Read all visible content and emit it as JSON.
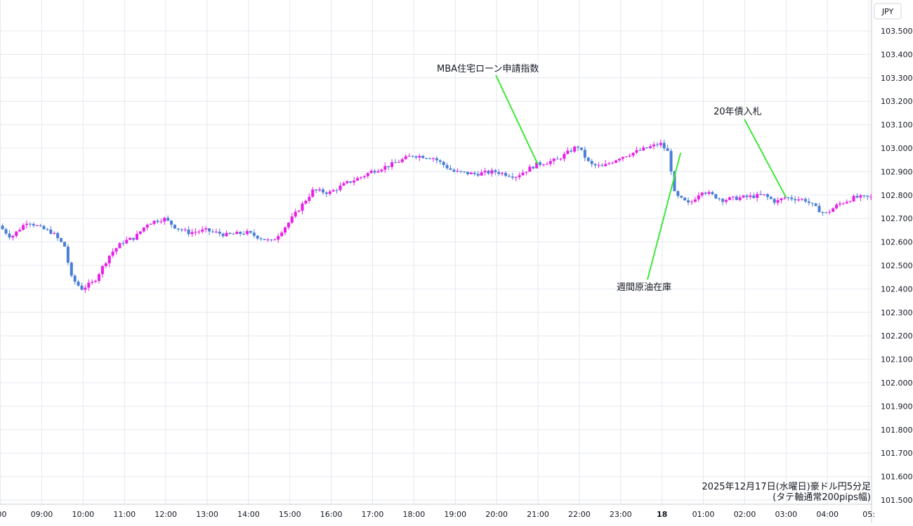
{
  "chart_data": {
    "type": "candlestick",
    "currency_label": "JPY",
    "ylim": [
      101.5,
      103.5
    ],
    "y_ticks": [
      "103.500",
      "103.400",
      "103.300",
      "103.200",
      "103.100",
      "103.000",
      "102.900",
      "102.800",
      "102.700",
      "102.600",
      "102.500",
      "102.400",
      "102.300",
      "102.200",
      "102.100",
      "102.000",
      "101.900",
      "101.800",
      "101.700",
      "101.600",
      "101.500"
    ],
    "x_ticks": [
      ":00",
      "09:00",
      "10:00",
      "11:00",
      "12:00",
      "13:00",
      "14:00",
      "15:00",
      "16:00",
      "17:00",
      "18:00",
      "19:00",
      "20:00",
      "21:00",
      "22:00",
      "23:00",
      "18",
      "01:00",
      "02:00",
      "03:00",
      "04:00",
      "05:"
    ],
    "x_tick_hours": [
      8,
      9,
      10,
      11,
      12,
      13,
      14,
      15,
      16,
      17,
      18,
      19,
      20,
      21,
      22,
      23,
      24,
      25,
      26,
      27,
      28,
      29
    ],
    "x_range_hours": [
      7.99,
      29.05
    ],
    "grid": true,
    "colors": {
      "up": "#e91ee8",
      "down": "#4a7fd6",
      "annotation_line": "#3ee83a",
      "grid": "#e4e8ef"
    },
    "price_path": [
      [
        8.0,
        102.67
      ],
      [
        8.3,
        102.62
      ],
      [
        8.7,
        102.69
      ],
      [
        9.0,
        102.66
      ],
      [
        9.3,
        102.64
      ],
      [
        9.6,
        102.58
      ],
      [
        9.75,
        102.45
      ],
      [
        10.0,
        102.4
      ],
      [
        10.3,
        102.43
      ],
      [
        10.7,
        102.55
      ],
      [
        11.0,
        102.6
      ],
      [
        11.3,
        102.62
      ],
      [
        11.6,
        102.68
      ],
      [
        12.0,
        102.7
      ],
      [
        12.3,
        102.66
      ],
      [
        12.6,
        102.64
      ],
      [
        13.0,
        102.65
      ],
      [
        13.5,
        102.63
      ],
      [
        14.0,
        102.64
      ],
      [
        14.3,
        102.62
      ],
      [
        14.6,
        102.6
      ],
      [
        15.0,
        102.68
      ],
      [
        15.3,
        102.75
      ],
      [
        15.6,
        102.82
      ],
      [
        16.0,
        102.81
      ],
      [
        16.4,
        102.85
      ],
      [
        16.8,
        102.88
      ],
      [
        17.0,
        102.9
      ],
      [
        17.5,
        102.93
      ],
      [
        18.0,
        102.97
      ],
      [
        18.5,
        102.96
      ],
      [
        19.0,
        102.9
      ],
      [
        19.5,
        102.89
      ],
      [
        20.0,
        102.9
      ],
      [
        20.5,
        102.88
      ],
      [
        21.0,
        102.93
      ],
      [
        21.5,
        102.95
      ],
      [
        22.0,
        103.01
      ],
      [
        22.3,
        102.93
      ],
      [
        22.6,
        102.92
      ],
      [
        23.0,
        102.96
      ],
      [
        23.5,
        102.99
      ],
      [
        24.0,
        103.02
      ],
      [
        24.2,
        102.98
      ],
      [
        24.35,
        102.8
      ],
      [
        24.7,
        102.76
      ],
      [
        25.0,
        102.82
      ],
      [
        25.5,
        102.78
      ],
      [
        26.0,
        102.79
      ],
      [
        26.5,
        102.8
      ],
      [
        26.8,
        102.77
      ],
      [
        27.0,
        102.79
      ],
      [
        27.5,
        102.78
      ],
      [
        27.8,
        102.74
      ],
      [
        28.0,
        102.72
      ],
      [
        28.3,
        102.76
      ],
      [
        28.7,
        102.79
      ],
      [
        29.0,
        102.79
      ]
    ],
    "annotations": [
      {
        "label": "MBA住宅ローン申請指数",
        "anchor": [
          21.0,
          102.93
        ]
      },
      {
        "label": "週間原油在庫",
        "anchor": [
          24.45,
          102.98
        ]
      },
      {
        "label": "20年債入札",
        "anchor": [
          27.0,
          102.79
        ]
      }
    ],
    "caption_lines": [
      "2025年12月17日(水曜日)豪ドル円5分足",
      "(タテ軸通常200pips幅)"
    ]
  }
}
